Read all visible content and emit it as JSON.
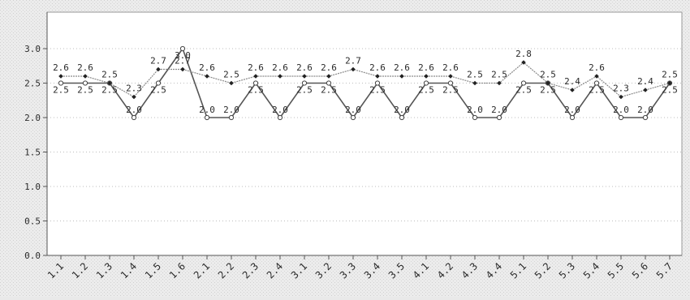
{
  "chart_data": {
    "type": "line",
    "title": "",
    "xlabel": "",
    "ylabel": "",
    "ylim": [
      0,
      3.0
    ],
    "yticks": [
      "0.0",
      "0.5",
      "1.0",
      "1.5",
      "2.0",
      "2.5",
      "3.0"
    ],
    "grid": "horizontal-dotted",
    "categories": [
      "1.1",
      "1.2",
      "1.3",
      "1.4",
      "1.5",
      "1.6",
      "2.1",
      "2.2",
      "2.3",
      "2.4",
      "3.1",
      "3.2",
      "3.3",
      "3.4",
      "3.5",
      "4.1",
      "4.2",
      "4.3",
      "4.4",
      "5.1",
      "5.2",
      "5.3",
      "5.4",
      "5.5",
      "5.6",
      "5.7"
    ],
    "series": [
      {
        "values": [
          2.5,
          2.5,
          2.5,
          2.0,
          2.5,
          3.0,
          2.0,
          2.0,
          2.5,
          2.0,
          2.5,
          2.5,
          2.0,
          2.5,
          2.0,
          2.5,
          2.5,
          2.0,
          2.0,
          2.5,
          2.5,
          2.0,
          2.5,
          2.0,
          2.0,
          2.5
        ],
        "labels": [
          "2.5",
          "2.5",
          "2.5",
          "2.0",
          "2.5",
          "3.0",
          "2.0",
          "2.0",
          "2.5",
          "2.0",
          "2.5",
          "2.5",
          "2.0",
          "2.5",
          "2.0",
          "2.5",
          "2.5",
          "2.0",
          "2.0",
          "2.5",
          "2.5",
          "2.0",
          "2.5",
          "2.0",
          "2.0",
          "2.5"
        ],
        "color": "#555555",
        "marker": "circle"
      },
      {
        "values": [
          2.6,
          2.6,
          2.5,
          2.3,
          2.7,
          2.7,
          2.6,
          2.5,
          2.6,
          2.6,
          2.6,
          2.6,
          2.7,
          2.6,
          2.6,
          2.6,
          2.6,
          2.5,
          2.5,
          2.8,
          2.5,
          2.4,
          2.6,
          2.3,
          2.4,
          2.5
        ],
        "labels": [
          "2.6",
          "2.6",
          "2.5",
          "2.3",
          "2.7",
          "2.7",
          "2.6",
          "2.5",
          "2.6",
          "2.6",
          "2.6",
          "2.6",
          "2.7",
          "2.6",
          "2.6",
          "2.6",
          "2.6",
          "2.5",
          "2.5",
          "2.8",
          "2.5",
          "2.4",
          "2.6",
          "2.3",
          "2.4",
          "2.5"
        ],
        "color": "#8a8a8a",
        "marker": "diamond"
      }
    ]
  }
}
